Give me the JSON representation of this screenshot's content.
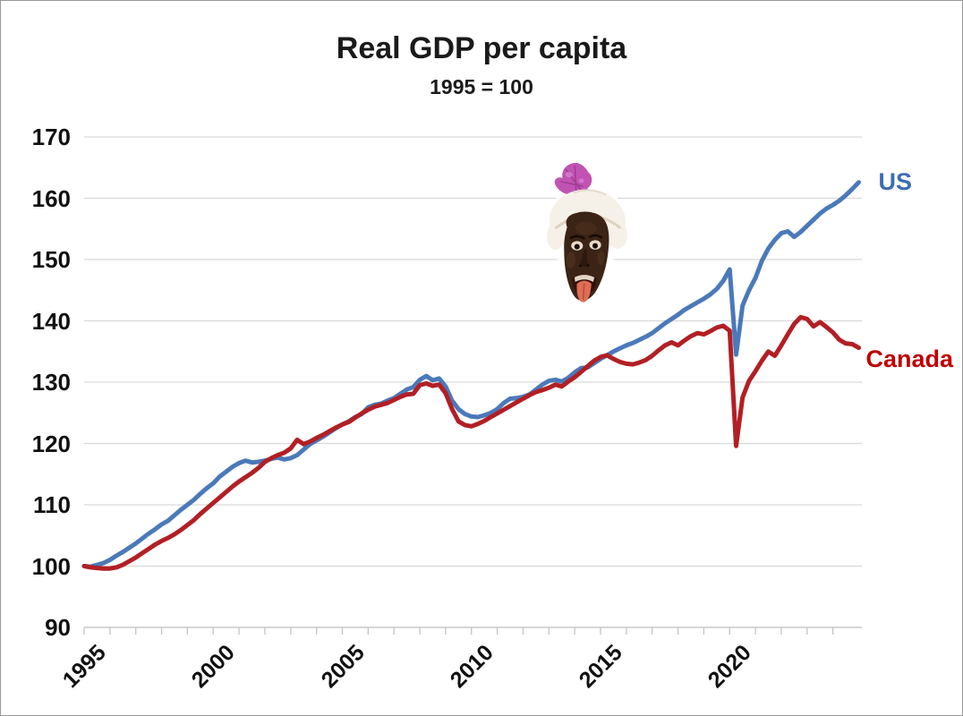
{
  "title": "Real GDP per capita",
  "subtitle": "1995 = 100",
  "series_labels": {
    "us": "US",
    "canada": "Canada"
  },
  "colors": {
    "us_line": "#4b79ba",
    "us_label": "#3e6cb3",
    "canada_line": "#b21f24",
    "canada_label": "#c00000",
    "gridline": "#d9d9d9",
    "axis": "#c4c4c4",
    "text": "#111111",
    "background": "#ffffff"
  },
  "overlay_image": {
    "name": "turban-face-photo",
    "description": "cut-out photograph of a man with dark face paint wearing a white turban topped by a purple feather plume and red brooch, eyes wide, mouth open with tongue sticking out"
  },
  "chart_data": {
    "type": "line",
    "title": "Real GDP per capita",
    "subtitle": "1995 = 100",
    "xlabel": "",
    "ylabel": "",
    "ylim": [
      90,
      170
    ],
    "ytick_step": 10,
    "yticks": [
      90,
      100,
      110,
      120,
      130,
      140,
      150,
      160,
      170
    ],
    "xticks": {
      "start": 1995,
      "end": 2024
    },
    "xticks_labeled": [
      1995,
      2000,
      2005,
      2010,
      2015,
      2020
    ],
    "x_start": 1995,
    "x_step": 0.25,
    "grid": "horizontal",
    "legend_position": "line-end-labels",
    "series": [
      {
        "name": "US",
        "color": "#4b79ba",
        "values": [
          100.0,
          99.9,
          100.2,
          100.5,
          101.0,
          101.7,
          102.3,
          103.0,
          103.7,
          104.5,
          105.3,
          106.0,
          106.8,
          107.4,
          108.3,
          109.2,
          110.0,
          110.8,
          111.8,
          112.7,
          113.5,
          114.6,
          115.4,
          116.2,
          116.8,
          117.2,
          116.9,
          117.0,
          117.2,
          117.5,
          117.7,
          117.4,
          117.6,
          118.1,
          119.0,
          119.9,
          120.5,
          121.1,
          121.8,
          122.5,
          123.1,
          123.6,
          124.3,
          124.8,
          125.9,
          126.3,
          126.5,
          127.0,
          127.4,
          128.1,
          128.8,
          129.2,
          130.4,
          131.0,
          130.3,
          130.6,
          129.3,
          127.0,
          125.6,
          124.8,
          124.4,
          124.3,
          124.6,
          125.0,
          125.6,
          126.6,
          127.3,
          127.4,
          127.6,
          128.0,
          128.8,
          129.6,
          130.2,
          130.4,
          130.1,
          130.7,
          131.6,
          132.3,
          132.4,
          133.1,
          133.8,
          134.4,
          135.0,
          135.5,
          136.0,
          136.4,
          136.9,
          137.4,
          138.0,
          138.8,
          139.6,
          140.3,
          141.0,
          141.8,
          142.4,
          143.0,
          143.6,
          144.3,
          145.2,
          146.5,
          148.4,
          134.5,
          142.5,
          145.0,
          147.0,
          149.8,
          151.8,
          153.2,
          154.3,
          154.6,
          153.7,
          154.5,
          155.5,
          156.5,
          157.5,
          158.3,
          158.9,
          159.6,
          160.5,
          161.5,
          162.6
        ]
      },
      {
        "name": "Canada",
        "color": "#b21f24",
        "values": [
          100.0,
          99.8,
          99.7,
          99.6,
          99.6,
          99.8,
          100.2,
          100.8,
          101.4,
          102.1,
          102.8,
          103.5,
          104.1,
          104.6,
          105.2,
          105.9,
          106.7,
          107.5,
          108.5,
          109.4,
          110.3,
          111.2,
          112.1,
          113.0,
          113.8,
          114.5,
          115.2,
          116.0,
          117.0,
          117.6,
          118.1,
          118.5,
          119.2,
          120.6,
          119.9,
          120.3,
          120.9,
          121.4,
          122.0,
          122.6,
          123.1,
          123.5,
          124.2,
          124.9,
          125.5,
          126.0,
          126.3,
          126.6,
          127.1,
          127.6,
          128.0,
          128.1,
          129.5,
          129.8,
          129.4,
          129.6,
          128.2,
          125.6,
          123.6,
          123.0,
          122.8,
          123.2,
          123.7,
          124.3,
          124.9,
          125.5,
          126.1,
          126.7,
          127.3,
          127.9,
          128.4,
          128.7,
          129.1,
          129.6,
          129.3,
          130.1,
          130.8,
          131.7,
          132.6,
          133.5,
          134.1,
          134.4,
          133.8,
          133.3,
          133.0,
          132.9,
          133.2,
          133.6,
          134.3,
          135.2,
          136.0,
          136.5,
          136.0,
          136.8,
          137.5,
          138.0,
          137.8,
          138.3,
          138.9,
          139.2,
          138.4,
          119.6,
          127.5,
          130.2,
          131.8,
          133.5,
          135.0,
          134.3,
          136.0,
          137.8,
          139.5,
          140.6,
          140.3,
          139.1,
          139.8,
          139.0,
          138.1,
          136.9,
          136.3,
          136.2,
          135.6
        ]
      }
    ]
  }
}
